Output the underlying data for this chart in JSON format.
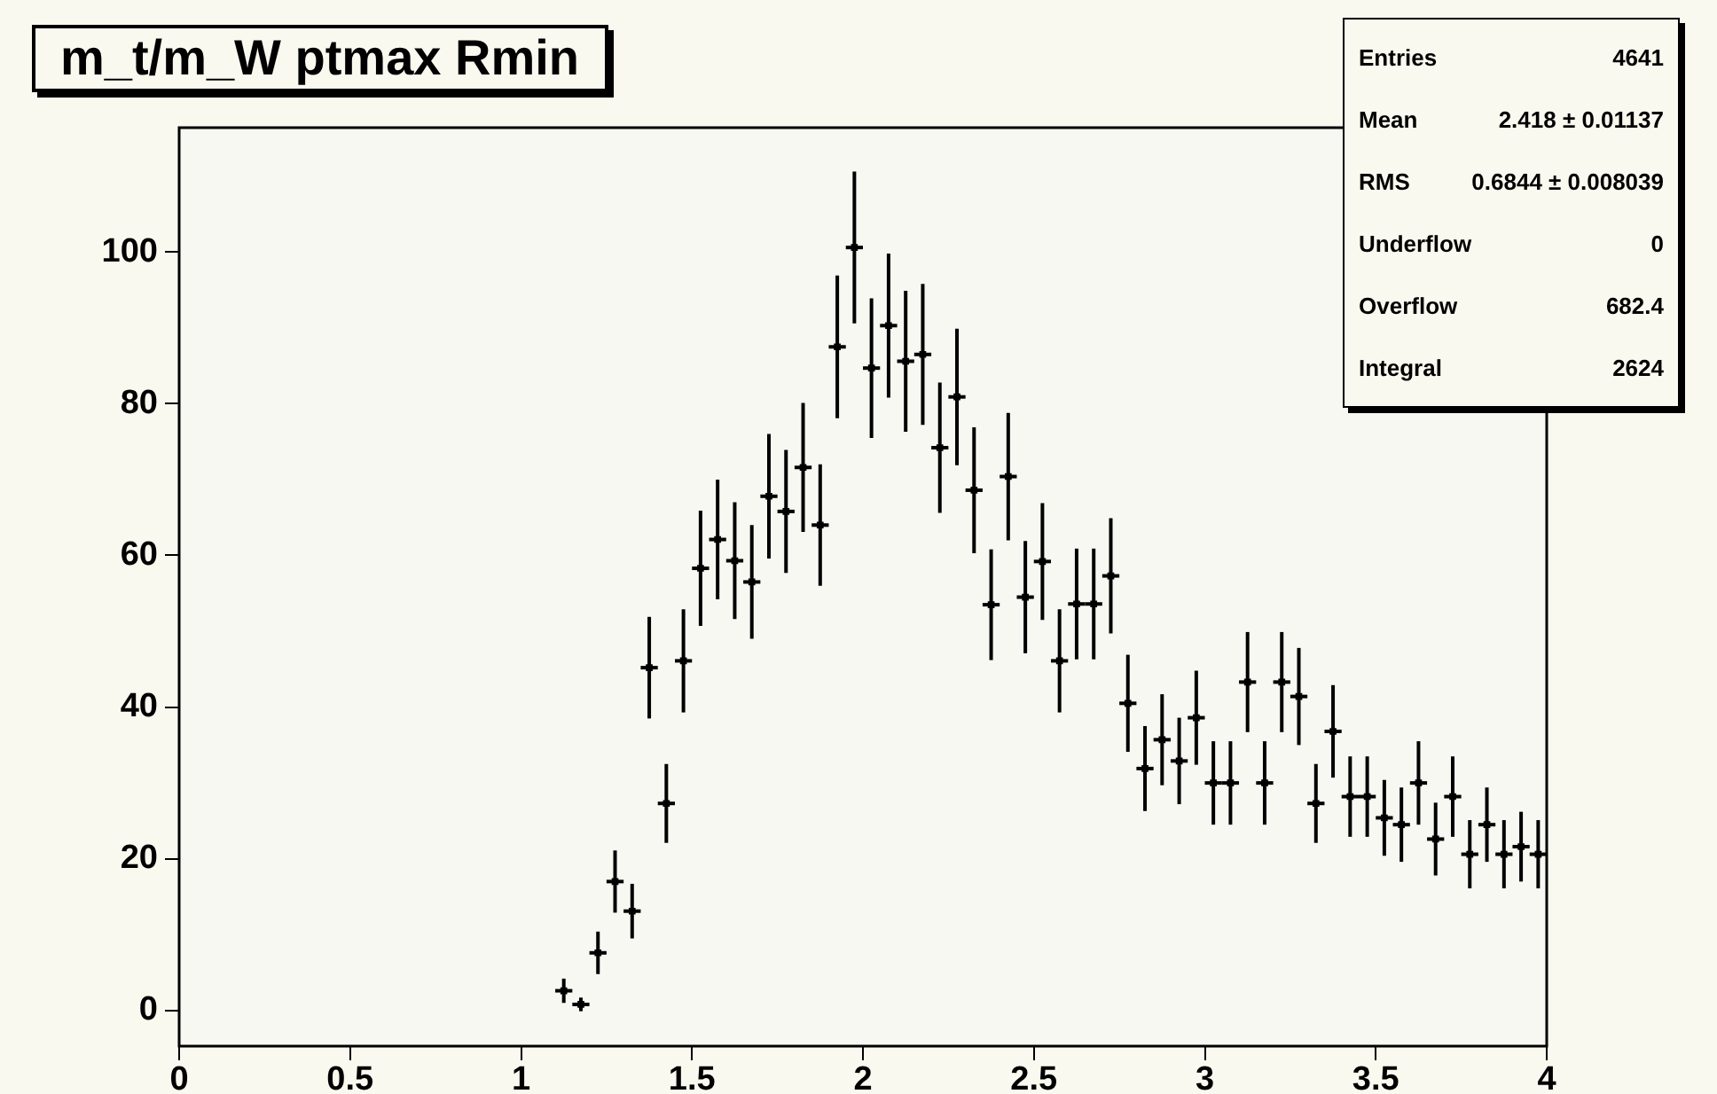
{
  "chart_data": {
    "type": "scatter",
    "title": "m_t/m_W ptmax Rmin",
    "x": [
      1.125,
      1.175,
      1.225,
      1.275,
      1.325,
      1.375,
      1.425,
      1.475,
      1.525,
      1.575,
      1.625,
      1.675,
      1.725,
      1.775,
      1.825,
      1.875,
      1.925,
      1.975,
      2.025,
      2.075,
      2.125,
      2.175,
      2.225,
      2.275,
      2.325,
      2.375,
      2.425,
      2.475,
      2.525,
      2.575,
      2.625,
      2.675,
      2.725,
      2.775,
      2.825,
      2.875,
      2.925,
      2.975,
      3.025,
      3.075,
      3.125,
      3.175,
      3.225,
      3.275,
      3.325,
      3.375,
      3.425,
      3.475,
      3.525,
      3.575,
      3.625,
      3.675,
      3.725,
      3.775,
      3.825,
      3.875,
      3.925,
      3.975
    ],
    "series": [
      {
        "color": "#000000",
        "values": [
          2.6,
          0.8,
          7.6,
          17.0,
          13.1,
          45.2,
          27.3,
          46.1,
          58.3,
          62.1,
          59.3,
          56.5,
          67.8,
          65.8,
          71.6,
          64.0,
          87.5,
          100.6,
          84.7,
          90.3,
          85.6,
          86.5,
          74.2,
          80.9,
          68.6,
          53.5,
          70.4,
          54.5,
          59.2,
          46.1,
          53.6,
          53.6,
          57.3,
          40.5,
          31.9,
          35.7,
          32.9,
          38.6,
          30.0,
          30.0,
          43.3,
          30.0,
          43.3,
          41.4,
          27.3,
          36.8,
          28.2,
          28.2,
          25.4,
          24.5,
          30.0,
          22.6,
          28.2,
          20.6,
          24.5,
          20.6,
          21.6,
          20.6
        ],
        "errors": [
          1.6,
          0.9,
          2.8,
          4.1,
          3.6,
          6.7,
          5.2,
          6.8,
          7.6,
          7.9,
          7.7,
          7.5,
          8.2,
          8.1,
          8.5,
          8.0,
          9.4,
          10.0,
          9.2,
          9.5,
          9.3,
          9.3,
          8.6,
          9.0,
          8.3,
          7.3,
          8.4,
          7.4,
          7.7,
          6.8,
          7.3,
          7.3,
          7.6,
          6.4,
          5.6,
          6.0,
          5.7,
          6.2,
          5.5,
          5.5,
          6.6,
          5.5,
          6.6,
          6.4,
          5.2,
          6.1,
          5.3,
          5.3,
          5.0,
          4.9,
          5.5,
          4.8,
          5.3,
          4.5,
          4.9,
          4.5,
          4.6,
          4.5
        ],
        "xerrors": [
          0.025,
          0.025,
          0.025,
          0.025,
          0.025,
          0.025,
          0.025,
          0.025,
          0.025,
          0.025,
          0.025,
          0.025,
          0.025,
          0.025,
          0.025,
          0.025,
          0.025,
          0.025,
          0.025,
          0.025,
          0.025,
          0.025,
          0.025,
          0.025,
          0.025,
          0.025,
          0.025,
          0.025,
          0.025,
          0.025,
          0.025,
          0.025,
          0.025,
          0.025,
          0.025,
          0.025,
          0.025,
          0.025,
          0.025,
          0.025,
          0.025,
          0.025,
          0.025,
          0.025,
          0.025,
          0.025,
          0.025,
          0.025,
          0.025,
          0.025,
          0.025,
          0.025,
          0.025,
          0.025,
          0.025,
          0.025,
          0.025,
          0.025
        ]
      }
    ],
    "marker": "square",
    "xlim": [
      0,
      4
    ],
    "xticks": [
      0,
      0.5,
      1,
      1.5,
      2,
      2.5,
      3,
      3.5,
      4
    ],
    "ylim": [
      -4.7,
      116.4
    ],
    "yticks": [
      0,
      20,
      40,
      60,
      80,
      100
    ],
    "grid": false,
    "legend": false,
    "annotations": [
      "Entries 4641",
      "Mean 2.418 ± 0.01137",
      "RMS 0.6844 ± 0.008039",
      "Underflow 0",
      "Overflow 682.4",
      "Integral 2624"
    ]
  }
}
